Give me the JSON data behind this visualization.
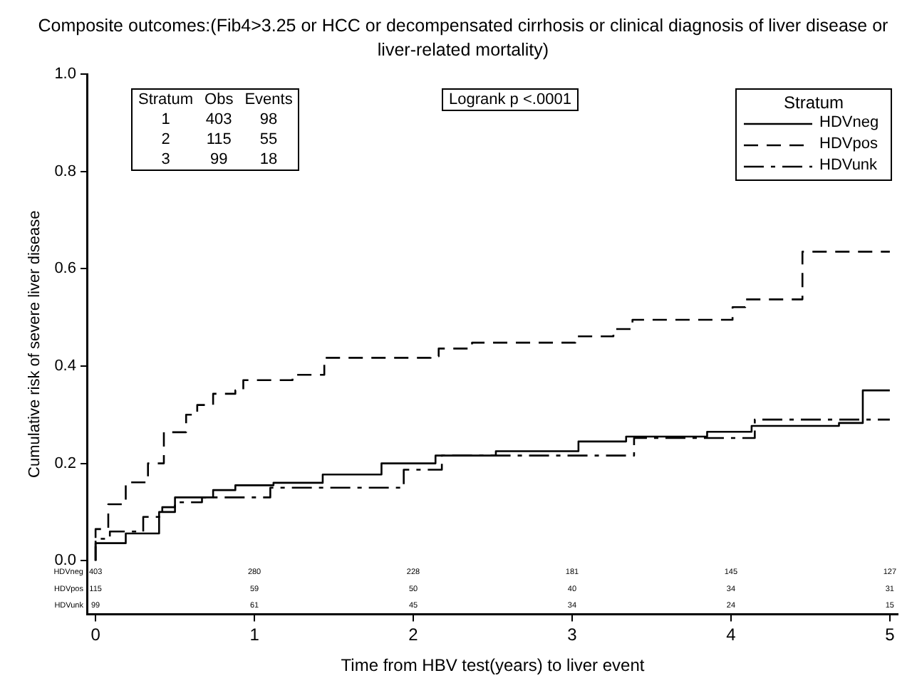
{
  "chart_data": {
    "type": "step",
    "title": "Composite outcomes:(Fib4>3.25 or HCC or decompensated cirrhosis or clinical diagnosis of liver disease or liver-related mortality)",
    "xlabel": "Time from HBV test(years) to liver event",
    "ylabel": "Cumulative risk of severe liver disease",
    "legend_title": "Stratum",
    "legend": "top right",
    "grid": false,
    "marker": "none",
    "xlim": [
      -0.05,
      5.05
    ],
    "xticks": [
      0,
      1,
      2,
      3,
      4,
      5
    ],
    "ylim": [
      -0.11,
      1.0
    ],
    "yticks": [
      {
        "value": 0,
        "label": "0.0"
      },
      {
        "value": 0.2,
        "label": "0.2"
      },
      {
        "value": 0.4,
        "label": "0.4"
      },
      {
        "value": 0.6,
        "label": "0.6"
      },
      {
        "value": 0.8,
        "label": "0.8"
      },
      {
        "value": 1,
        "label": "1.0"
      }
    ],
    "annotations": [
      "Logrank p <.0001",
      "Stratum Obs Events",
      "1 403 98",
      "2 115 55",
      "3 99 18",
      "HDVneg",
      "HDVpos",
      "HDVunk",
      "403",
      "280",
      "228",
      "181",
      "145",
      "127",
      "115",
      "59",
      "50",
      "40",
      "34",
      "31",
      "99",
      "61",
      "45",
      "34",
      "24",
      "15"
    ],
    "series": [
      {
        "name": "HDVneg",
        "color": "#000000",
        "line_style": "solid",
        "x": [
          0,
          0.19,
          0.4,
          0.5,
          0.74,
          0.88,
          1.12,
          1.43,
          1.8,
          2.14,
          2.52,
          3.04,
          3.34,
          3.85,
          4.13,
          4.68,
          4.83,
          5.0
        ],
        "values": [
          0,
          0.036,
          0.056,
          0.1,
          0.13,
          0.145,
          0.155,
          0.16,
          0.177,
          0.2,
          0.216,
          0.225,
          0.245,
          0.255,
          0.265,
          0.277,
          0.283,
          0.35
        ]
      },
      {
        "name": "HDVpos",
        "color": "#000000",
        "line_style": "dashed",
        "x": [
          0,
          0.08,
          0.19,
          0.33,
          0.43,
          0.57,
          0.64,
          0.74,
          0.88,
          0.93,
          1.24,
          1.44,
          2.11,
          2.16,
          2.37,
          3.02,
          3.26,
          3.38,
          4.01,
          4.09,
          4.45,
          5.0
        ],
        "values": [
          0,
          0.065,
          0.116,
          0.161,
          0.2,
          0.264,
          0.3,
          0.32,
          0.343,
          0.35,
          0.371,
          0.382,
          0.417,
          0.42,
          0.436,
          0.448,
          0.461,
          0.476,
          0.495,
          0.521,
          0.537,
          0.635
        ]
      },
      {
        "name": "HDVunk",
        "color": "#000000",
        "line_style": "dashdot",
        "x": [
          0,
          0.09,
          0.3,
          0.42,
          0.5,
          0.67,
          1.1,
          1.94,
          2.18,
          3.39,
          4.15,
          4.47,
          5.0
        ],
        "values": [
          0,
          0.045,
          0.06,
          0.09,
          0.11,
          0.12,
          0.13,
          0.15,
          0.187,
          0.216,
          0.252,
          0.29,
          0.29
        ]
      }
    ]
  }
}
